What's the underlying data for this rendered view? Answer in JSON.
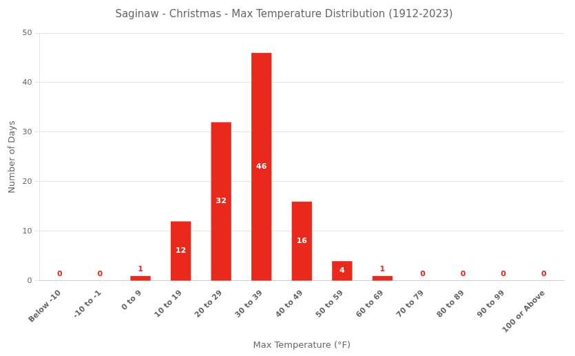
{
  "chart_data": {
    "type": "bar",
    "title": "Saginaw - Christmas - Max Temperature Distribution (1912-2023)",
    "xlabel": "Max Temperature (°F)",
    "ylabel": "Number of Days",
    "categories": [
      "Below -10",
      "-10 to -1",
      "0 to 9",
      "10 to 19",
      "20 to 29",
      "30 to 39",
      "40 to 49",
      "50 to 59",
      "60 to 69",
      "70 to 79",
      "80 to 89",
      "90 to 99",
      "100 or Above"
    ],
    "values": [
      0,
      0,
      1,
      12,
      32,
      46,
      16,
      4,
      1,
      0,
      0,
      0,
      0
    ],
    "color": "#e8291c",
    "ylim": [
      0,
      50
    ],
    "yticks": [
      0,
      10,
      20,
      30,
      40,
      50
    ],
    "grid": true,
    "data_labels": true
  }
}
